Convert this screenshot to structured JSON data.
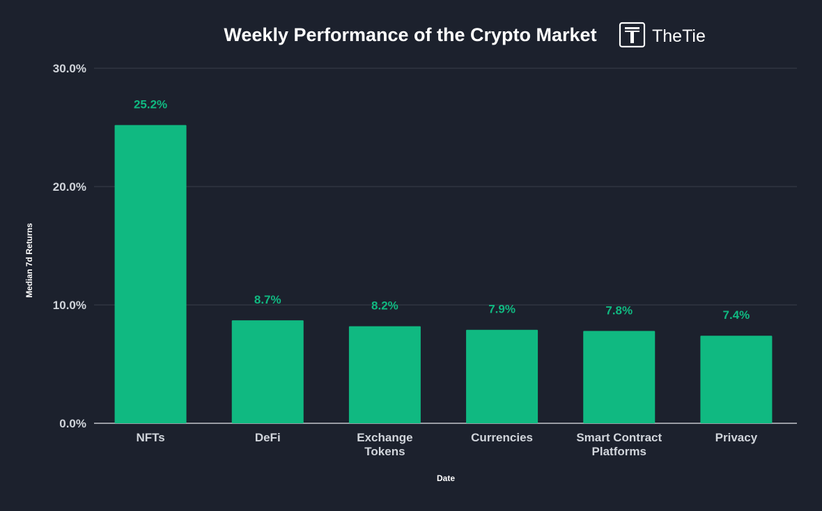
{
  "colors": {
    "background": "#1c212d",
    "bar": "#10b981",
    "value_label": "#10b981",
    "text": "#ffffff",
    "tick_text": "#d1d5db",
    "grid": "#3a3f4b",
    "axis": "#e5e7eb"
  },
  "logo": {
    "text": "TheTie",
    "icon": "thetie-logo-icon"
  },
  "chart_data": {
    "type": "bar",
    "title": "Weekly Performance of the Crypto Market",
    "xlabel": "Date",
    "ylabel": "Median 7d Returns",
    "categories": [
      [
        "NFTs"
      ],
      [
        "DeFi"
      ],
      [
        "Exchange",
        "Tokens"
      ],
      [
        "Currencies"
      ],
      [
        "Smart Contract",
        "Platforms"
      ],
      [
        "Privacy"
      ]
    ],
    "values": [
      25.2,
      8.7,
      8.2,
      7.9,
      7.8,
      7.4
    ],
    "value_labels": [
      "25.2%",
      "8.7%",
      "8.2%",
      "7.9%",
      "7.8%",
      "7.4%"
    ],
    "ylim": [
      0,
      30
    ],
    "yticks": [
      0,
      10,
      20,
      30
    ],
    "ytick_labels": [
      "0.0%",
      "10.0%",
      "20.0%",
      "30.0%"
    ],
    "grid": true
  }
}
